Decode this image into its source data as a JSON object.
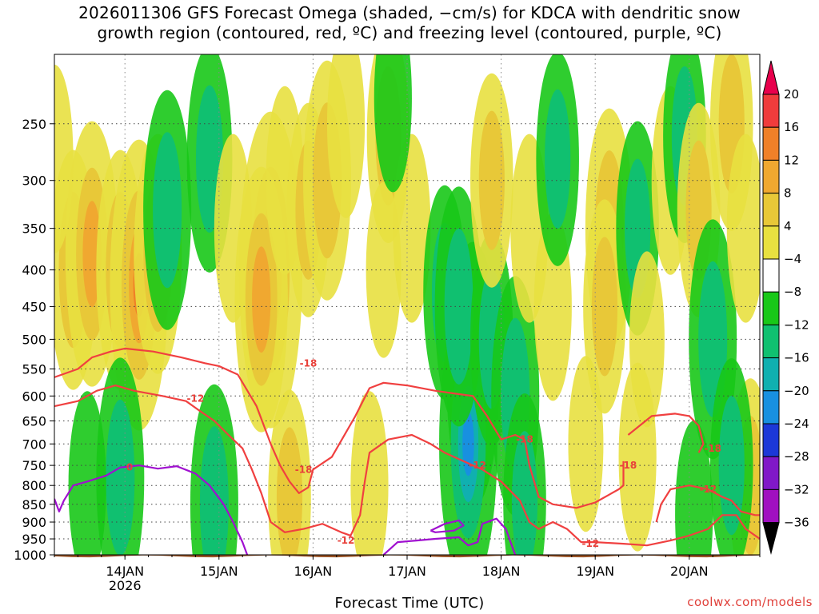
{
  "title": {
    "line1": "2026011306 GFS Forecast Omega (shaded, −cm/s) for KDCA with dendritic snow",
    "line2": "growth region (contoured, red, ºC) and freezing level (contoured, purple, ºC)"
  },
  "credit": "coolwx.com/models",
  "chart_data": {
    "type": "heatmap",
    "title": "2026011306 GFS Forecast Omega (shaded, −cm/s) for KDCA with dendritic snow growth region (contoured, red, ºC) and freezing level (contoured, purple, ºC)",
    "xlabel": "Forecast Time (UTC)",
    "ylabel": "",
    "x_ticks": [
      {
        "label": "14JAN",
        "sub": "2026",
        "day": 14
      },
      {
        "label": "15JAN",
        "sub": "",
        "day": 15
      },
      {
        "label": "16JAN",
        "sub": "",
        "day": 16
      },
      {
        "label": "17JAN",
        "sub": "",
        "day": 17
      },
      {
        "label": "18JAN",
        "sub": "",
        "day": 18
      },
      {
        "label": "19JAN",
        "sub": "",
        "day": 19
      },
      {
        "label": "20JAN",
        "sub": "",
        "day": 20
      }
    ],
    "xlim_days": [
      13.25,
      20.75
    ],
    "y_ticks": [
      250,
      300,
      350,
      400,
      450,
      500,
      550,
      600,
      650,
      700,
      750,
      800,
      850,
      900,
      950,
      1000
    ],
    "ylim_hpa": [
      200,
      1000
    ],
    "y_scale": "log-pressure",
    "grid": true,
    "colorbar": {
      "levels": [
        "20",
        "16",
        "12",
        "8",
        "4",
        "−4",
        "−8",
        "−12",
        "−16",
        "−20",
        "−24",
        "−28",
        "−32",
        "−36"
      ],
      "colors": [
        "#e8004c",
        "#f03c3c",
        "#f08028",
        "#f0a830",
        "#e8c838",
        "#e8e040",
        "#ffffff",
        "#18c818",
        "#10c070",
        "#10b0b0",
        "#1890e0",
        "#1c38d8",
        "#8018c8",
        "#a010c0",
        "#a8a8a8",
        "#000000"
      ]
    },
    "omega_cells": [
      {
        "t": 13.45,
        "p": 400,
        "v": 10
      },
      {
        "t": 13.65,
        "p": 380,
        "v": 12
      },
      {
        "t": 13.95,
        "p": 400,
        "v": 10
      },
      {
        "t": 14.15,
        "p": 420,
        "v": 14
      },
      {
        "t": 14.35,
        "p": 380,
        "v": 10
      },
      {
        "t": 13.25,
        "p": 280,
        "v": 6
      },
      {
        "t": 14.9,
        "p": 280,
        "v": -9
      },
      {
        "t": 14.45,
        "p": 330,
        "v": -10
      },
      {
        "t": 15.15,
        "p": 350,
        "v": 6
      },
      {
        "t": 15.55,
        "p": 400,
        "v": 16
      },
      {
        "t": 15.45,
        "p": 440,
        "v": 12
      },
      {
        "t": 15.7,
        "p": 300,
        "v": 6
      },
      {
        "t": 15.95,
        "p": 330,
        "v": 8
      },
      {
        "t": 16.15,
        "p": 300,
        "v": 10
      },
      {
        "t": 16.35,
        "p": 250,
        "v": 6
      },
      {
        "t": 16.8,
        "p": 260,
        "v": 8
      },
      {
        "t": 17.05,
        "p": 350,
        "v": 6
      },
      {
        "t": 16.75,
        "p": 400,
        "v": 5
      },
      {
        "t": 16.85,
        "p": 230,
        "v": -6
      },
      {
        "t": 17.4,
        "p": 430,
        "v": -8
      },
      {
        "t": 17.7,
        "p": 560,
        "v": -12
      },
      {
        "t": 17.65,
        "p": 700,
        "v": -14
      },
      {
        "t": 17.55,
        "p": 450,
        "v": -10
      },
      {
        "t": 17.9,
        "p": 500,
        "v": -8
      },
      {
        "t": 17.9,
        "p": 300,
        "v": 8
      },
      {
        "t": 18.15,
        "p": 600,
        "v": -10
      },
      {
        "t": 18.3,
        "p": 350,
        "v": 6
      },
      {
        "t": 18.55,
        "p": 450,
        "v": 6
      },
      {
        "t": 18.6,
        "p": 280,
        "v": -8
      },
      {
        "t": 18.9,
        "p": 700,
        "v": 5
      },
      {
        "t": 19.15,
        "p": 350,
        "v": 10
      },
      {
        "t": 19.1,
        "p": 450,
        "v": 8
      },
      {
        "t": 19.45,
        "p": 350,
        "v": -8
      },
      {
        "t": 19.55,
        "p": 500,
        "v": 5
      },
      {
        "t": 19.8,
        "p": 300,
        "v": 6
      },
      {
        "t": 19.95,
        "p": 260,
        "v": -8
      },
      {
        "t": 20.1,
        "p": 330,
        "v": 8
      },
      {
        "t": 20.25,
        "p": 500,
        "v": -10
      },
      {
        "t": 20.45,
        "p": 250,
        "v": 8
      },
      {
        "t": 20.6,
        "p": 350,
        "v": 6
      },
      {
        "t": 20.65,
        "p": 800,
        "v": 8
      },
      {
        "t": 20.45,
        "p": 750,
        "v": -8
      },
      {
        "t": 14.95,
        "p": 850,
        "v": -10
      },
      {
        "t": 13.95,
        "p": 780,
        "v": -10
      },
      {
        "t": 13.6,
        "p": 800,
        "v": -6
      },
      {
        "t": 15.75,
        "p": 830,
        "v": 8
      },
      {
        "t": 16.6,
        "p": 800,
        "v": 6
      },
      {
        "t": 18.25,
        "p": 840,
        "v": -8
      },
      {
        "t": 19.45,
        "p": 730,
        "v": 6
      },
      {
        "t": 20.05,
        "p": 880,
        "v": -6
      }
    ],
    "dendritic_contours": [
      {
        "label": "-18",
        "points": [
          [
            13.25,
            565
          ],
          [
            13.5,
            550
          ],
          [
            13.65,
            530
          ],
          [
            13.85,
            520
          ],
          [
            14.0,
            515
          ],
          [
            14.3,
            520
          ],
          [
            14.6,
            530
          ],
          [
            14.85,
            540
          ],
          [
            15.0,
            545
          ],
          [
            15.2,
            560
          ],
          [
            15.4,
            620
          ],
          [
            15.55,
            700
          ],
          [
            15.65,
            750
          ],
          [
            15.75,
            790
          ],
          [
            15.85,
            820
          ],
          [
            15.95,
            805
          ],
          [
            16.0,
            760
          ],
          [
            16.2,
            730
          ],
          [
            16.45,
            640
          ],
          [
            16.6,
            585
          ],
          [
            16.75,
            575
          ],
          [
            17.0,
            580
          ],
          [
            17.3,
            590
          ],
          [
            17.5,
            595
          ],
          [
            17.7,
            600
          ],
          [
            17.85,
            640
          ],
          [
            18.0,
            690
          ],
          [
            18.15,
            680
          ],
          [
            18.25,
            690
          ],
          [
            18.3,
            750
          ],
          [
            18.4,
            830
          ],
          [
            18.55,
            850
          ],
          [
            18.8,
            860
          ],
          [
            19.0,
            845
          ],
          [
            19.25,
            810
          ],
          [
            19.3,
            800
          ],
          [
            19.3,
            740
          ]
        ]
      },
      {
        "label": "-12",
        "points": [
          [
            13.25,
            620
          ],
          [
            13.5,
            610
          ],
          [
            13.7,
            590
          ],
          [
            13.9,
            580
          ],
          [
            14.1,
            590
          ],
          [
            14.4,
            600
          ],
          [
            14.65,
            610
          ],
          [
            14.8,
            630
          ],
          [
            14.95,
            650
          ],
          [
            15.1,
            680
          ],
          [
            15.25,
            710
          ],
          [
            15.35,
            760
          ],
          [
            15.45,
            820
          ],
          [
            15.55,
            900
          ],
          [
            15.7,
            930
          ],
          [
            15.9,
            920
          ],
          [
            16.1,
            905
          ],
          [
            16.3,
            930
          ],
          [
            16.4,
            940
          ],
          [
            16.5,
            880
          ],
          [
            16.55,
            790
          ],
          [
            16.6,
            720
          ],
          [
            16.8,
            690
          ],
          [
            17.05,
            680
          ],
          [
            17.25,
            700
          ],
          [
            17.4,
            720
          ],
          [
            17.6,
            740
          ],
          [
            17.8,
            760
          ],
          [
            18.0,
            790
          ],
          [
            18.2,
            840
          ],
          [
            18.3,
            900
          ],
          [
            18.4,
            920
          ],
          [
            18.55,
            900
          ],
          [
            18.7,
            920
          ],
          [
            18.85,
            960
          ],
          [
            19.0,
            960
          ],
          [
            19.3,
            965
          ],
          [
            19.55,
            970
          ],
          [
            19.8,
            955
          ],
          [
            20.0,
            940
          ],
          [
            20.2,
            920
          ],
          [
            20.35,
            880
          ],
          [
            20.5,
            880
          ],
          [
            20.6,
            920
          ],
          [
            20.75,
            950
          ]
        ]
      },
      {
        "label": "-18",
        "points": [
          [
            19.35,
            680
          ],
          [
            19.6,
            640
          ],
          [
            19.85,
            635
          ],
          [
            20.0,
            640
          ],
          [
            20.1,
            660
          ],
          [
            20.15,
            700
          ],
          [
            20.1,
            720
          ]
        ]
      },
      {
        "label": "-12",
        "points": [
          [
            19.65,
            900
          ],
          [
            19.7,
            850
          ],
          [
            19.8,
            810
          ],
          [
            20.0,
            800
          ],
          [
            20.2,
            810
          ],
          [
            20.35,
            830
          ],
          [
            20.45,
            840
          ],
          [
            20.55,
            870
          ],
          [
            20.7,
            880
          ],
          [
            20.75,
            880
          ]
        ]
      }
    ],
    "freezing_contours": [
      {
        "label": "0",
        "points": [
          [
            13.25,
            835
          ],
          [
            13.3,
            870
          ],
          [
            13.35,
            840
          ],
          [
            13.45,
            800
          ],
          [
            13.6,
            790
          ],
          [
            13.8,
            775
          ],
          [
            13.95,
            755
          ],
          [
            14.15,
            750
          ],
          [
            14.35,
            758
          ],
          [
            14.55,
            752
          ],
          [
            14.75,
            770
          ],
          [
            14.9,
            800
          ],
          [
            15.05,
            850
          ],
          [
            15.15,
            900
          ],
          [
            15.25,
            960
          ],
          [
            15.3,
            1000
          ]
        ]
      },
      {
        "label": "0",
        "points": [
          [
            16.75,
            1000
          ],
          [
            16.9,
            960
          ],
          [
            17.1,
            955
          ],
          [
            17.3,
            950
          ],
          [
            17.55,
            945
          ],
          [
            17.65,
            970
          ],
          [
            17.75,
            960
          ],
          [
            17.8,
            905
          ],
          [
            17.95,
            890
          ],
          [
            18.05,
            920
          ],
          [
            18.1,
            960
          ],
          [
            18.15,
            1000
          ]
        ]
      },
      {
        "label": "0",
        "points": [
          [
            17.25,
            925
          ],
          [
            17.4,
            905
          ],
          [
            17.55,
            895
          ],
          [
            17.6,
            910
          ],
          [
            17.5,
            925
          ],
          [
            17.3,
            930
          ],
          [
            17.25,
            925
          ]
        ]
      }
    ]
  }
}
